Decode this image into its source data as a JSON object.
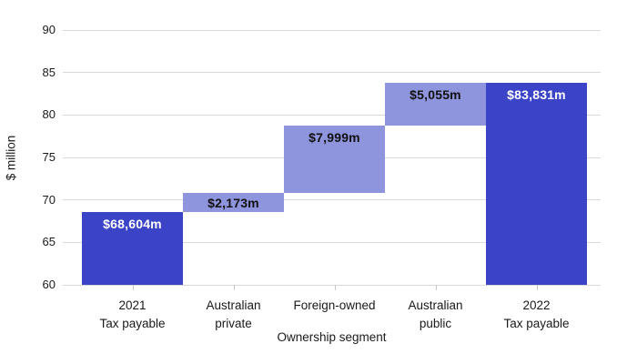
{
  "chart_data": {
    "type": "bar",
    "subtype": "waterfall",
    "title": "",
    "ylabel": "$ million",
    "xlabel": "Ownership segment",
    "ylim": [
      60,
      90
    ],
    "yticks": [
      60,
      65,
      70,
      75,
      80,
      85,
      90
    ],
    "grid": "horizontal",
    "legend": "none",
    "bars": [
      {
        "category": "2021\nTax payable",
        "label": "$68,604m",
        "value_millions": 68604,
        "start": 60,
        "end": 68.604,
        "role": "total"
      },
      {
        "category": "Australian\nprivate",
        "label": "$2,173m",
        "value_millions": 2173,
        "start": 68.604,
        "end": 70.777,
        "role": "increase"
      },
      {
        "category": "Foreign-owned",
        "label": "$7,999m",
        "value_millions": 7999,
        "start": 70.777,
        "end": 78.776,
        "role": "increase"
      },
      {
        "category": "Australian\npublic",
        "label": "$5,055m",
        "value_millions": 5055,
        "start": 78.776,
        "end": 83.831,
        "role": "increase"
      },
      {
        "category": "2022\nTax payable",
        "label": "$83,831m",
        "value_millions": 83831,
        "start": 60,
        "end": 83.831,
        "role": "total"
      }
    ],
    "colors": {
      "total_bar": "#3b44c6",
      "increase_bar": "#8e95dc",
      "label_on_total": "#ffffff",
      "label_on_increase": "#111111",
      "gridline": "#d9d9d9",
      "tick": "#c7c7c7",
      "text": "#1a1a1a"
    }
  }
}
